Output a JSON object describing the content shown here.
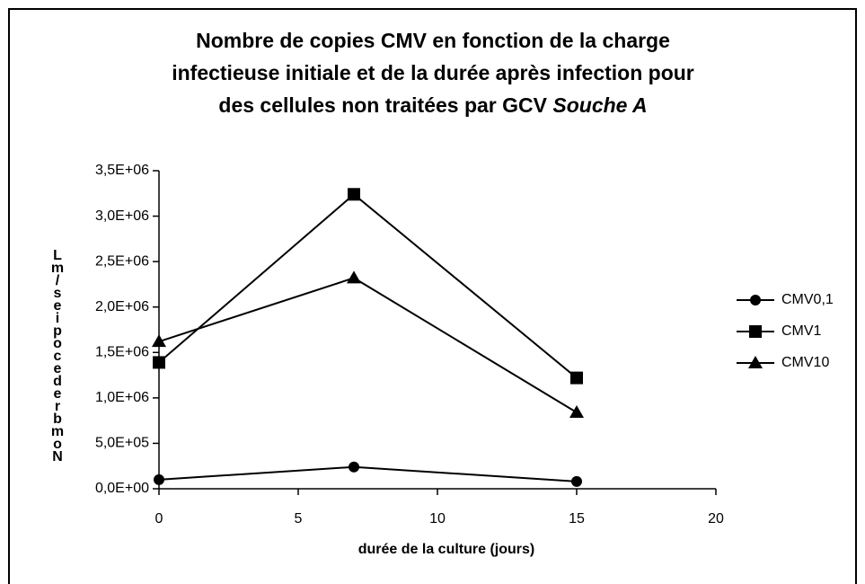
{
  "chart_data": {
    "type": "line",
    "title_lines": [
      "Nombre de copies CMV en fonction de la charge",
      "infectieuse initiale   et de la durée après infection pour",
      "des cellules non traitées par GCV "
    ],
    "title_italic": "Souche A",
    "xlabel": "durée de la culture (jours)",
    "ylabel": "Nombre de copies/mL",
    "series": [
      {
        "name": "CMV0,1",
        "color": "#000000",
        "marker": "circle",
        "x": [
          0,
          7,
          15
        ],
        "values": [
          100000,
          240000,
          80000
        ]
      },
      {
        "name": "CMV1",
        "color": "#000000",
        "marker": "square",
        "x": [
          0,
          7,
          15
        ],
        "values": [
          1390000,
          3240000,
          1220000
        ]
      },
      {
        "name": "CMV10",
        "color": "#000000",
        "marker": "triangle",
        "x": [
          0,
          7,
          15
        ],
        "values": [
          1620000,
          2320000,
          840000
        ]
      }
    ],
    "xlim": [
      0,
      20
    ],
    "xticks": [
      0,
      5,
      10,
      15,
      20
    ],
    "ylim": [
      0,
      3500000
    ],
    "yticks": [
      {
        "value": 0,
        "label": "0,0E+00"
      },
      {
        "value": 500000,
        "label": "5,0E+05"
      },
      {
        "value": 1000000,
        "label": "1,0E+06"
      },
      {
        "value": 1500000,
        "label": "1,5E+06"
      },
      {
        "value": 2000000,
        "label": "2,0E+06"
      },
      {
        "value": 2500000,
        "label": "2,5E+06"
      },
      {
        "value": 3000000,
        "label": "3,0E+06"
      },
      {
        "value": 3500000,
        "label": "3,5E+06"
      }
    ],
    "legend": "right"
  }
}
